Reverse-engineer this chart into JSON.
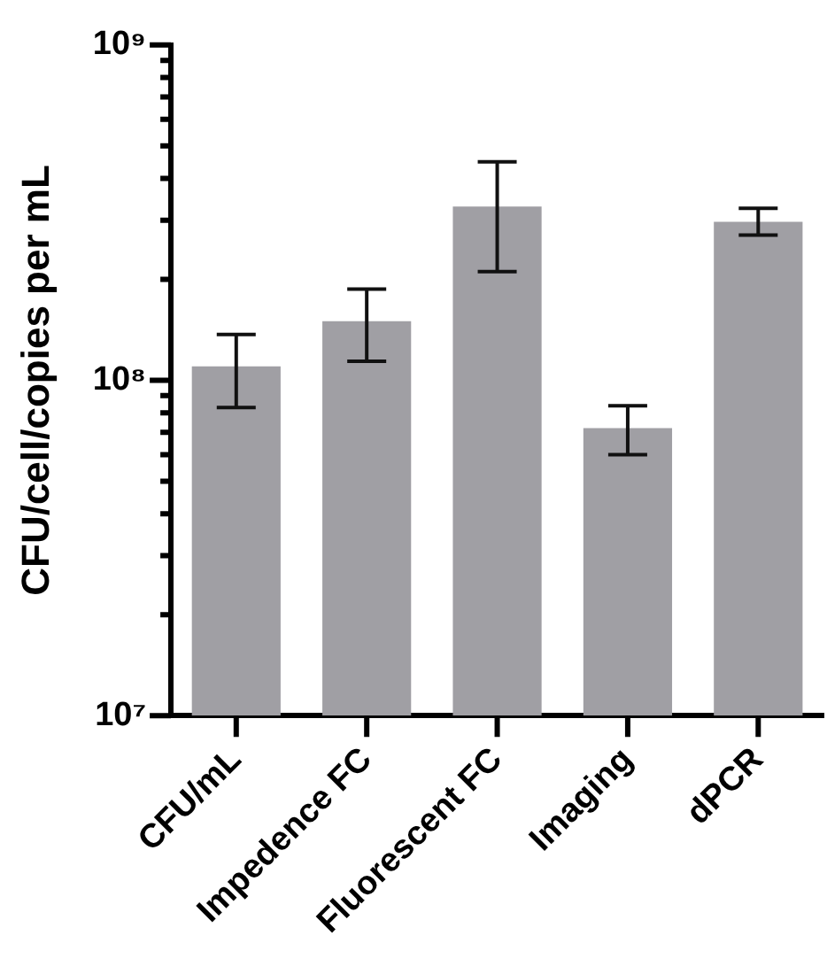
{
  "chart_data": {
    "type": "bar",
    "ylabel": "CFU/cell/copies per mL",
    "categories": [
      "CFU/mL",
      "Impedence FC",
      "Fluorescent FC",
      "Imaging",
      "dPCR"
    ],
    "values": [
      110000000,
      150000000,
      330000000,
      72000000,
      297000000
    ],
    "errors": [
      [
        83000000,
        137000000
      ],
      [
        114000000,
        187000000
      ],
      [
        211000000,
        448000000
      ],
      [
        60000000,
        84000000
      ],
      [
        271000000,
        326000000
      ]
    ],
    "color": "#a09fa4",
    "log": true,
    "ylim": [
      10000000,
      1000000000
    ],
    "yticks": [
      {
        "value": 10000000,
        "label": "10⁷"
      },
      {
        "value": 20000000,
        "label": null
      },
      {
        "value": 30000000,
        "label": null
      },
      {
        "value": 40000000,
        "label": null
      },
      {
        "value": 50000000,
        "label": null
      },
      {
        "value": 60000000,
        "label": null
      },
      {
        "value": 70000000,
        "label": null
      },
      {
        "value": 80000000,
        "label": null
      },
      {
        "value": 90000000,
        "label": null
      },
      {
        "value": 100000000,
        "label": "10⁸"
      },
      {
        "value": 200000000,
        "label": null
      },
      {
        "value": 300000000,
        "label": null
      },
      {
        "value": 400000000,
        "label": null
      },
      {
        "value": 500000000,
        "label": null
      },
      {
        "value": 600000000,
        "label": null
      },
      {
        "value": 700000000,
        "label": null
      },
      {
        "value": 800000000,
        "label": null
      },
      {
        "value": 900000000,
        "label": null
      },
      {
        "value": 1000000000,
        "label": "10⁹"
      }
    ]
  }
}
